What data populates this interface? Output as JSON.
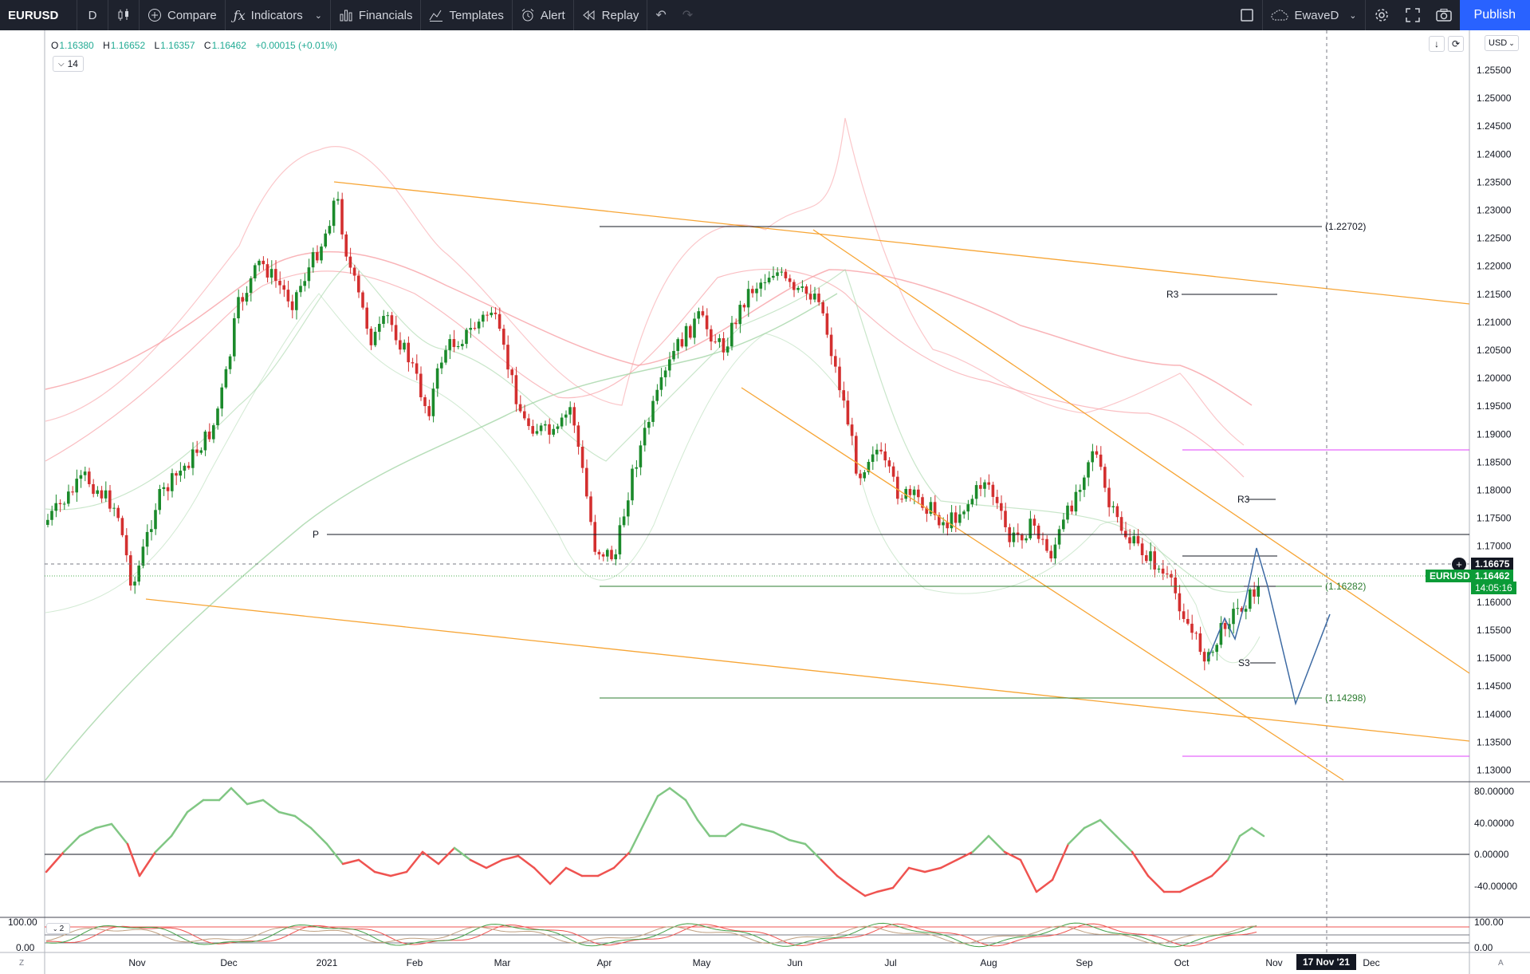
{
  "toolbar": {
    "symbol": "EURUSD",
    "interval": "D",
    "compare": "Compare",
    "indicators": "Indicators",
    "financials": "Financials",
    "templates": "Templates",
    "alert": "Alert",
    "replay": "Replay",
    "layout_name": "EwaveD",
    "publish": "Publish"
  },
  "legend": {
    "open_label": "O",
    "open": "1.16380",
    "high_label": "H",
    "high": "1.16652",
    "low_label": "L",
    "low": "1.16357",
    "close_label": "C",
    "close": "1.16462",
    "change": "+0.00015 (+0.01%)",
    "indicators_count": "14"
  },
  "price_scale": {
    "currency": "USD",
    "labels": [
      "1.25500",
      "1.25000",
      "1.24500",
      "1.24000",
      "1.23500",
      "1.23000",
      "1.22500",
      "1.22000",
      "1.21500",
      "1.21000",
      "1.20500",
      "1.20000",
      "1.19500",
      "1.19000",
      "1.18500",
      "1.18000",
      "1.17500",
      "1.17000",
      "1.16500",
      "1.16000",
      "1.15500",
      "1.15000",
      "1.14500",
      "1.14000",
      "1.13500",
      "1.13000"
    ],
    "crosshair_price": "1.16675",
    "last_price": "1.16462",
    "countdown": "14:05:16",
    "symbol_tag": "EURUSD"
  },
  "osc1_scale": {
    "labels": [
      "80.00000",
      "40.00000",
      "0.00000",
      "-40.00000"
    ]
  },
  "osc2_scale": {
    "left_top": "100.00",
    "left_bottom": "0.00",
    "right_top": "100.00",
    "right_bottom": "0.00",
    "pane_index": "2"
  },
  "time_axis": {
    "labels": [
      "Nov",
      "Dec",
      "2021",
      "Feb",
      "Mar",
      "Apr",
      "May",
      "Jun",
      "Jul",
      "Aug",
      "Sep",
      "Oct",
      "Nov",
      "Dec"
    ],
    "crosshair_date": "17 Nov '21"
  },
  "annotations": {
    "level_upper": "(1.22702)",
    "level_mid": "(1.16282)",
    "level_lower": "(1.14298)",
    "pivot_p": "P",
    "r3_a": "R3",
    "r3_b": "R3",
    "s3": "S3"
  },
  "corner_left": "Z",
  "corner_right": "A",
  "colors": {
    "up": "#089981",
    "down": "#f23645",
    "orange": "#f7a535",
    "green_line": "#2e7d32",
    "magenta": "#e040fb",
    "blue_path": "#3d6aa3"
  }
}
